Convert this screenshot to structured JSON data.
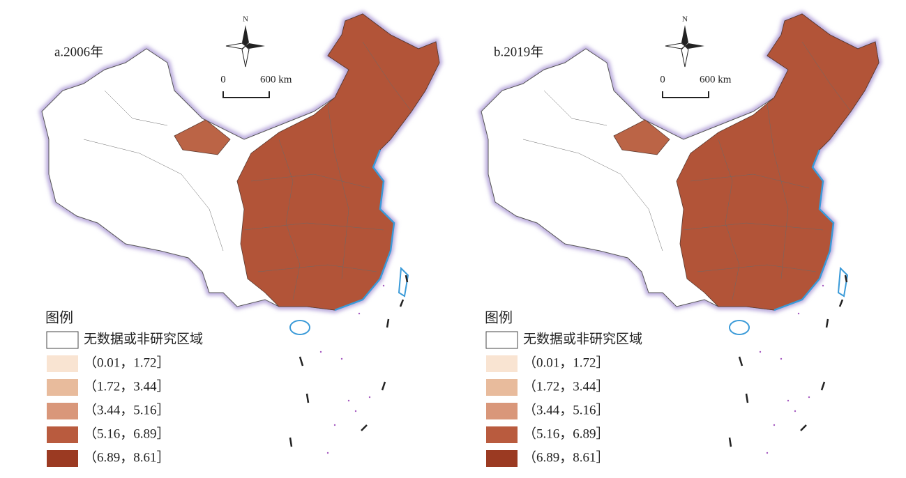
{
  "panels": [
    {
      "title": "a.2006年",
      "north": "N",
      "scale": {
        "start": "0",
        "end": "600 km"
      },
      "legend": {
        "title": "图例",
        "items": [
          {
            "label": "无数据或非研究区域",
            "color": "#ffffff"
          },
          {
            "label": "（0.01，1.72］",
            "color": "#f9e4d2"
          },
          {
            "label": "（1.72，3.44］",
            "color": "#e8bb9c"
          },
          {
            "label": "（3.44，5.16］",
            "color": "#d9977a"
          },
          {
            "label": "（5.16，6.89］",
            "color": "#b95b3e"
          },
          {
            "label": "（6.89，8.61］",
            "color": "#9b3a22"
          }
        ]
      }
    },
    {
      "title": "b.2019年",
      "north": "N",
      "scale": {
        "start": "0",
        "end": "600 km"
      },
      "legend": {
        "title": "图例",
        "items": [
          {
            "label": "无数据或非研究区域",
            "color": "#ffffff"
          },
          {
            "label": "（0.01，1.72］",
            "color": "#f9e4d2"
          },
          {
            "label": "（1.72，3.44］",
            "color": "#e8bb9c"
          },
          {
            "label": "（3.44，5.16］",
            "color": "#d9977a"
          },
          {
            "label": "（5.16，6.89］",
            "color": "#b95b3e"
          },
          {
            "label": "（6.89，8.61］",
            "color": "#9b3a22"
          }
        ]
      }
    }
  ]
}
